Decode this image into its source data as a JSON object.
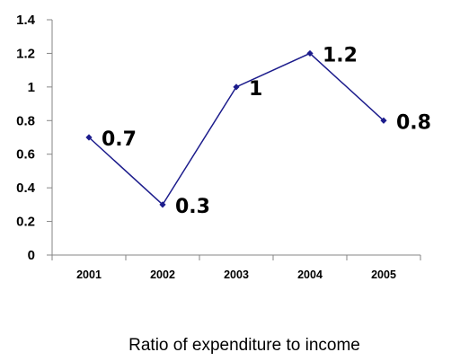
{
  "chart_data": {
    "type": "line",
    "title": "",
    "caption": "Ratio of expenditure to income",
    "xlabel": "",
    "ylabel": "",
    "categories": [
      "2001",
      "2002",
      "2003",
      "2004",
      "2005"
    ],
    "series": [
      {
        "values": [
          0.7,
          0.3,
          1,
          1.2,
          0.8
        ],
        "data_labels": [
          "0.7",
          "0.3",
          "1",
          "1.2",
          "0.8"
        ],
        "color": "#1c1c8c",
        "marker": "diamond"
      }
    ],
    "ylim": [
      0,
      1.4
    ],
    "yticks": [
      0,
      0.2,
      0.4,
      0.6,
      0.8,
      1,
      1.2,
      1.4
    ],
    "ytick_labels": [
      "0",
      "0.2",
      "0.4",
      "0.6",
      "0.8",
      "1",
      "1.2",
      "1.4"
    ],
    "grid": false,
    "legend": "none"
  }
}
